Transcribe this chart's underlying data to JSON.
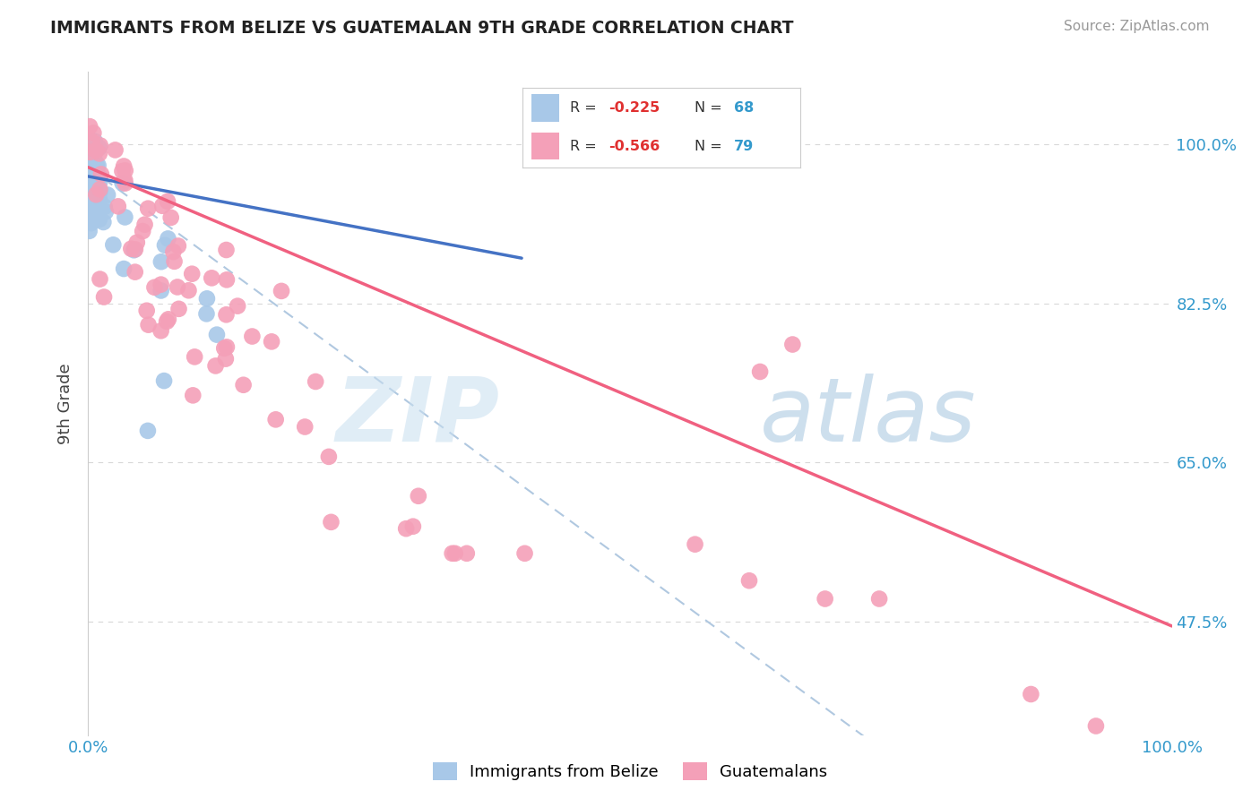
{
  "title": "IMMIGRANTS FROM BELIZE VS GUATEMALAN 9TH GRADE CORRELATION CHART",
  "source": "Source: ZipAtlas.com",
  "ylabel": "9th Grade",
  "belize_color": "#a8c8e8",
  "guatemalan_color": "#f4a0b8",
  "belize_trend_color": "#4472c4",
  "guatemalan_trend_color": "#f06080",
  "dashed_line_color": "#b0c8e0",
  "grid_color": "#d8d8d8",
  "ytick_values": [
    1.0,
    0.825,
    0.65,
    0.475
  ],
  "ytick_labels": [
    "100.0%",
    "82.5%",
    "65.0%",
    "47.5%"
  ],
  "xlim": [
    0.0,
    1.0
  ],
  "ylim": [
    0.35,
    1.08
  ],
  "belize_r": -0.225,
  "belize_n": 68,
  "guatemalan_r": -0.566,
  "guatemalan_n": 79,
  "belize_trend": [
    0.0,
    0.965,
    0.4,
    0.875
  ],
  "guatemalan_trend": [
    0.0,
    0.975,
    1.0,
    0.47
  ],
  "dashed_trend": [
    0.0,
    0.975,
    1.0,
    0.1
  ],
  "watermark_zip_color": "#c8dff0",
  "watermark_atlas_color": "#90b8d8"
}
